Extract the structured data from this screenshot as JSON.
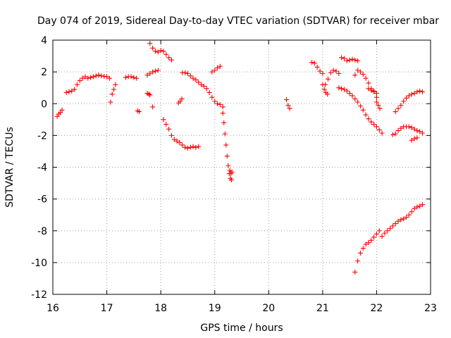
{
  "chart_data": {
    "type": "scatter",
    "title": "Day 074 of 2019, Sidereal Day-to-day VTEC variation (SDTVAR) for receiver mbar",
    "xlabel": "GPS time / hours",
    "ylabel": "SDTVAR / TECUs",
    "xlim": [
      16,
      23
    ],
    "ylim": [
      -12,
      4
    ],
    "xticks": [
      "16",
      "17",
      "18",
      "19",
      "20",
      "21",
      "22",
      "23"
    ],
    "yticks": [
      "4",
      "2",
      "0",
      "-2",
      "-4",
      "-6",
      "-8",
      "-10",
      "-12"
    ],
    "grid": true,
    "legend": "none",
    "marker": "+",
    "marker_color": "#ff0000",
    "series": [
      {
        "name": "s1",
        "x": [
          16.08,
          16.11,
          16.14,
          16.17
        ],
        "y": [
          -0.8,
          -0.65,
          -0.55,
          -0.4
        ]
      },
      {
        "name": "s2",
        "x": [
          16.25,
          16.3,
          16.35,
          16.4,
          16.45,
          16.5,
          16.55,
          16.6,
          16.65,
          16.7,
          16.75,
          16.8,
          16.85,
          16.9,
          16.95,
          17.0,
          17.05
        ],
        "y": [
          0.7,
          0.75,
          0.8,
          0.9,
          1.2,
          1.45,
          1.6,
          1.7,
          1.6,
          1.65,
          1.7,
          1.75,
          1.8,
          1.75,
          1.72,
          1.7,
          1.6
        ]
      },
      {
        "name": "s3",
        "x": [
          17.07,
          17.1,
          17.13,
          17.16
        ],
        "y": [
          0.1,
          0.6,
          0.9,
          1.2
        ]
      },
      {
        "name": "s4",
        "x": [
          17.35,
          17.4,
          17.45,
          17.5,
          17.55
        ],
        "y": [
          1.65,
          1.7,
          1.7,
          1.65,
          1.6
        ]
      },
      {
        "name": "s5",
        "x": [
          17.57,
          17.6
        ],
        "y": [
          -0.45,
          -0.5
        ]
      },
      {
        "name": "s6",
        "x": [
          17.75,
          17.78,
          17.8
        ],
        "y": [
          0.65,
          0.6,
          0.55
        ]
      },
      {
        "name": "s7",
        "x": [
          17.85
        ],
        "y": [
          -0.2
        ]
      },
      {
        "name": "s8",
        "x": [
          17.75,
          17.8,
          17.85,
          17.9,
          17.95
        ],
        "y": [
          1.8,
          1.9,
          2.0,
          2.05,
          2.1
        ]
      },
      {
        "name": "s9",
        "x": [
          17.8,
          17.85,
          17.9,
          17.95,
          18.0,
          18.05,
          18.1,
          18.15,
          18.2
        ],
        "y": [
          3.8,
          3.5,
          3.3,
          3.25,
          3.35,
          3.3,
          3.1,
          2.9,
          2.75
        ]
      },
      {
        "name": "s10",
        "x": [
          18.05,
          18.1,
          18.15,
          18.2,
          18.25,
          18.3,
          18.35,
          18.4,
          18.45,
          18.5,
          18.55,
          18.6,
          18.65,
          18.7
        ],
        "y": [
          -1.0,
          -1.3,
          -1.6,
          -2.0,
          -2.25,
          -2.35,
          -2.45,
          -2.6,
          -2.75,
          -2.8,
          -2.75,
          -2.7,
          -2.75,
          -2.7
        ]
      },
      {
        "name": "s11",
        "x": [
          18.33,
          18.36,
          18.39
        ],
        "y": [
          0.05,
          0.15,
          0.3
        ]
      },
      {
        "name": "s12",
        "x": [
          18.4,
          18.45,
          18.5,
          18.55,
          18.6,
          18.65,
          18.7,
          18.75,
          18.8,
          18.85,
          18.9,
          18.95,
          19.0,
          19.05,
          19.1,
          19.15
        ],
        "y": [
          1.95,
          1.95,
          1.9,
          1.75,
          1.6,
          1.5,
          1.35,
          1.2,
          1.1,
          0.95,
          0.7,
          0.4,
          0.15,
          0.0,
          -0.05,
          -0.2
        ]
      },
      {
        "name": "s13",
        "x": [
          18.95,
          19.0,
          19.05,
          19.1
        ],
        "y": [
          2.0,
          2.1,
          2.25,
          2.35
        ]
      },
      {
        "name": "s14",
        "x": [
          19.15,
          19.17,
          19.19,
          19.21,
          19.23,
          19.25,
          19.27,
          19.29,
          19.31
        ],
        "y": [
          -0.6,
          -1.2,
          -1.9,
          -2.6,
          -3.3,
          -3.9,
          -4.4,
          -4.7,
          -4.8
        ]
      },
      {
        "name": "s15",
        "x": [
          19.28,
          19.3,
          19.32
        ],
        "y": [
          -4.2,
          -4.4,
          -4.3
        ]
      },
      {
        "name": "s16",
        "x": [
          20.33,
          20.36,
          20.39
        ],
        "y": [
          0.25,
          -0.1,
          -0.3
        ]
      },
      {
        "name": "s17",
        "x": [
          20.8,
          20.85,
          20.9,
          20.95,
          21.0
        ],
        "y": [
          2.6,
          2.55,
          2.3,
          2.05,
          1.9
        ]
      },
      {
        "name": "s18",
        "x": [
          21.0,
          21.03,
          21.06,
          21.09
        ],
        "y": [
          1.2,
          0.9,
          0.7,
          0.6
        ]
      },
      {
        "name": "s19",
        "x": [
          21.05,
          21.1,
          21.15,
          21.2,
          21.25,
          21.3
        ],
        "y": [
          1.2,
          1.55,
          1.95,
          2.1,
          2.05,
          1.9
        ]
      },
      {
        "name": "s20",
        "x": [
          21.35,
          21.4,
          21.45,
          21.5,
          21.55,
          21.6,
          21.65
        ],
        "y": [
          2.9,
          2.85,
          2.7,
          2.75,
          2.8,
          2.75,
          2.7
        ]
      },
      {
        "name": "s21",
        "x": [
          21.3,
          21.35,
          21.4,
          21.45,
          21.5,
          21.55,
          21.6,
          21.65,
          21.7,
          21.75,
          21.8,
          21.85,
          21.9,
          21.95,
          22.0,
          22.05,
          22.1
        ],
        "y": [
          1.0,
          0.95,
          0.9,
          0.8,
          0.65,
          0.5,
          0.3,
          0.1,
          -0.15,
          -0.4,
          -0.7,
          -0.95,
          -1.15,
          -1.3,
          -1.45,
          -1.65,
          -1.85
        ]
      },
      {
        "name": "s22",
        "x": [
          21.6,
          21.65,
          21.7,
          21.75,
          21.8,
          21.85,
          21.9,
          21.95,
          22.0
        ],
        "y": [
          1.8,
          2.1,
          2.0,
          1.85,
          1.6,
          1.3,
          0.95,
          0.75,
          0.4
        ]
      },
      {
        "name": "s23",
        "x": [
          21.85,
          21.9,
          21.95,
          22.0
        ],
        "y": [
          0.95,
          0.85,
          0.8,
          0.65
        ]
      },
      {
        "name": "s24",
        "x": [
          22.0,
          22.03,
          22.06
        ],
        "y": [
          0.1,
          -0.1,
          -0.3
        ]
      },
      {
        "name": "s25",
        "x": [
          22.3,
          22.35,
          22.4,
          22.45,
          22.5,
          22.55,
          22.6,
          22.65,
          22.7,
          22.75,
          22.8,
          22.85
        ],
        "y": [
          -1.95,
          -1.9,
          -1.7,
          -1.55,
          -1.45,
          -1.45,
          -1.45,
          -1.5,
          -1.6,
          -1.7,
          -1.75,
          -1.85
        ]
      },
      {
        "name": "s26",
        "x": [
          22.35,
          22.4,
          22.45,
          22.5,
          22.55,
          22.6,
          22.65,
          22.7,
          22.75,
          22.8,
          22.85
        ],
        "y": [
          -0.5,
          -0.3,
          -0.1,
          0.15,
          0.35,
          0.5,
          0.6,
          0.65,
          0.75,
          0.8,
          0.75
        ]
      },
      {
        "name": "s27",
        "x": [
          22.65,
          22.7,
          22.75
        ],
        "y": [
          -2.3,
          -2.2,
          -2.15
        ]
      },
      {
        "name": "s28",
        "x": [
          21.6,
          21.65,
          21.7,
          21.75,
          21.8,
          21.85,
          21.9,
          21.95,
          22.0,
          22.05,
          22.1,
          22.15,
          22.2,
          22.25,
          22.3,
          22.35,
          22.4,
          22.45,
          22.5,
          22.55,
          22.6,
          22.65,
          22.7,
          22.75,
          22.8,
          22.85
        ],
        "y": [
          -10.6,
          -9.9,
          -9.4,
          -9.1,
          -8.85,
          -8.75,
          -8.6,
          -8.4,
          -8.2,
          -8.0,
          -8.35,
          -8.15,
          -8.0,
          -7.85,
          -7.7,
          -7.55,
          -7.4,
          -7.3,
          -7.25,
          -7.15,
          -7.0,
          -6.8,
          -6.6,
          -6.5,
          -6.45,
          -6.35
        ]
      }
    ]
  }
}
